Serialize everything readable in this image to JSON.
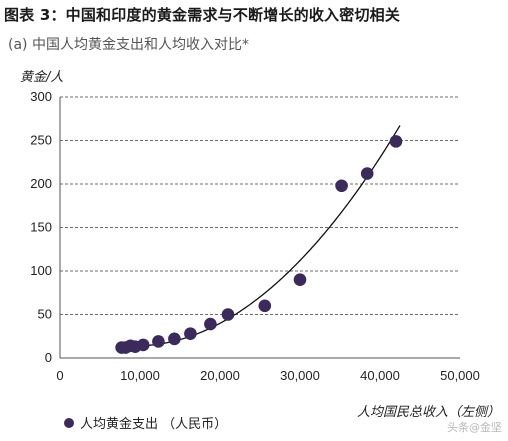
{
  "header": {
    "title": "图表 3：中国和印度的黄金需求与不断增长的收入密切相关",
    "subtitle": "(a) 中国人均黄金支出和人均收入对比*"
  },
  "watermark": "头条@金坚",
  "chart_data": {
    "type": "scatter",
    "ylabel": "黄金/人",
    "xlabel": "人均国民总收入（左侧）",
    "xlim": [
      0,
      50000
    ],
    "ylim": [
      0,
      300
    ],
    "x_ticks": [
      0,
      10000,
      20000,
      30000,
      40000,
      50000
    ],
    "x_tick_labels": [
      "0",
      "10,000",
      "20,000",
      "30,000",
      "40,000",
      "50,000"
    ],
    "y_ticks": [
      0,
      50,
      100,
      150,
      200,
      250,
      300
    ],
    "y_tick_labels": [
      "0",
      "50",
      "100",
      "150",
      "200",
      "250",
      "300"
    ],
    "grid": "horizontal-dashed",
    "legend_position": "bottom-left",
    "series": [
      {
        "name": "人均黄金支出 （人民币）",
        "color": "#3d2a5c",
        "points": [
          {
            "x": 7700,
            "y": 12
          },
          {
            "x": 8200,
            "y": 12
          },
          {
            "x": 8800,
            "y": 14
          },
          {
            "x": 9400,
            "y": 13
          },
          {
            "x": 10400,
            "y": 15
          },
          {
            "x": 12300,
            "y": 19
          },
          {
            "x": 14300,
            "y": 22
          },
          {
            "x": 16300,
            "y": 28
          },
          {
            "x": 18800,
            "y": 39
          },
          {
            "x": 21000,
            "y": 50
          },
          {
            "x": 25600,
            "y": 60
          },
          {
            "x": 30000,
            "y": 90
          },
          {
            "x": 35200,
            "y": 198
          },
          {
            "x": 38400,
            "y": 212
          },
          {
            "x": 42000,
            "y": 249
          }
        ]
      }
    ],
    "trendline": {
      "type": "polynomial",
      "color": "#111111",
      "x_start": 7500,
      "x_end": 42500
    }
  }
}
